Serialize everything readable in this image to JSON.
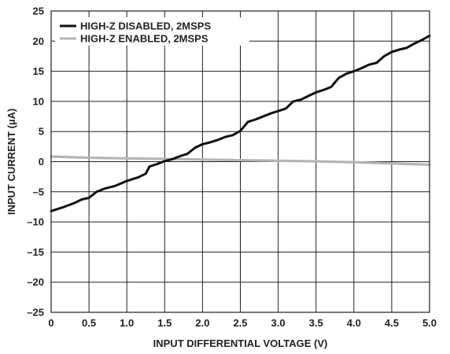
{
  "chart_data": {
    "type": "line",
    "title": "",
    "xlabel": "INPUT DIFFERENTIAL VOLTAGE (V)",
    "ylabel": "INPUT CURRENT (µA)",
    "xlim": [
      0,
      5.0
    ],
    "ylim": [
      -25,
      25
    ],
    "x_ticks": [
      "0",
      "0.5",
      "1.0",
      "1.5",
      "2.0",
      "2.5",
      "3.0",
      "3.5",
      "4.0",
      "4.5",
      "5.0"
    ],
    "y_ticks": [
      "25",
      "20",
      "15",
      "10",
      "5",
      "0",
      "–5",
      "–10",
      "–15",
      "–20",
      "–25"
    ],
    "grid": true,
    "legend_position": "top-left",
    "series": [
      {
        "name": "HIGH-Z DISABLED, 2MSPS",
        "color": "#111111",
        "x": [
          0,
          0.15,
          0.3,
          0.4,
          0.5,
          0.6,
          0.7,
          0.85,
          1.0,
          1.1,
          1.15,
          1.25,
          1.3,
          1.4,
          1.5,
          1.6,
          1.7,
          1.8,
          1.9,
          2.0,
          2.1,
          2.2,
          2.3,
          2.4,
          2.5,
          2.6,
          2.7,
          2.8,
          2.9,
          3.0,
          3.1,
          3.2,
          3.3,
          3.4,
          3.5,
          3.6,
          3.7,
          3.8,
          3.9,
          4.0,
          4.1,
          4.2,
          4.3,
          4.4,
          4.5,
          4.6,
          4.7,
          4.8,
          4.9,
          5.0
        ],
        "y": [
          -8.2,
          -7.6,
          -6.9,
          -6.3,
          -6.0,
          -5.0,
          -4.5,
          -4.0,
          -3.2,
          -2.8,
          -2.6,
          -2.0,
          -0.8,
          -0.4,
          0.1,
          0.4,
          0.9,
          1.3,
          2.3,
          2.9,
          3.2,
          3.6,
          4.1,
          4.4,
          5.1,
          6.6,
          7.0,
          7.5,
          8.0,
          8.4,
          8.8,
          10.0,
          10.3,
          10.9,
          11.5,
          11.9,
          12.4,
          13.9,
          14.6,
          15.0,
          15.5,
          16.1,
          16.4,
          17.5,
          18.2,
          18.6,
          18.9,
          19.6,
          20.2,
          20.9
        ]
      },
      {
        "name": "HIGH-Z ENABLED, 2MSPS",
        "color": "#b5b5b5",
        "x": [
          0,
          0.5,
          1.0,
          1.5,
          2.0,
          2.5,
          3.0,
          3.5,
          4.0,
          4.5,
          5.0
        ],
        "y": [
          0.85,
          0.65,
          0.55,
          0.45,
          0.35,
          0.25,
          0.15,
          0.05,
          -0.1,
          -0.3,
          -0.5
        ]
      }
    ]
  }
}
